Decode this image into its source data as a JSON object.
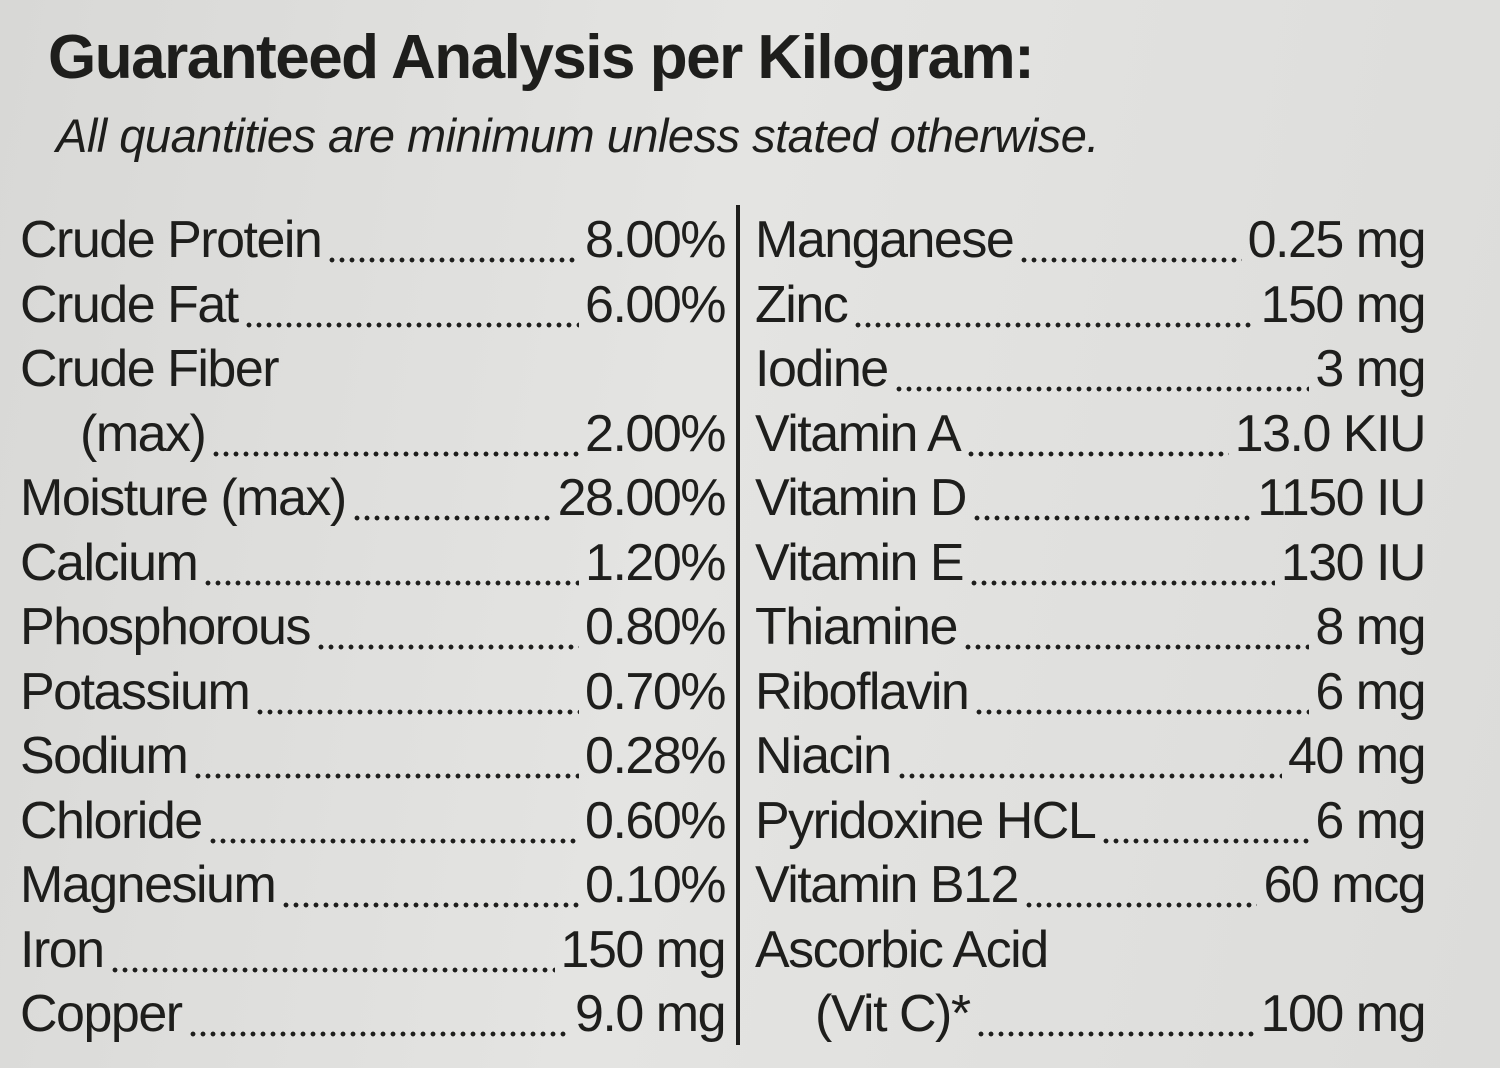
{
  "header": {
    "title": "Guaranteed Analysis per Kilogram:",
    "subtitle": "All quantities are minimum unless stated otherwise."
  },
  "left": [
    {
      "name": "Crude Protein",
      "value": "8.00%"
    },
    {
      "name": "Crude Fat",
      "value": "6.00%"
    },
    {
      "name": "Crude Fiber",
      "sub": "(max)",
      "value": "2.00%"
    },
    {
      "name": "Moisture (max)",
      "value": "28.00%"
    },
    {
      "name": "Calcium",
      "value": "1.20%"
    },
    {
      "name": "Phosphorous",
      "value": "0.80%"
    },
    {
      "name": "Potassium",
      "value": "0.70%"
    },
    {
      "name": "Sodium",
      "value": "0.28%"
    },
    {
      "name": "Chloride",
      "value": "0.60%"
    },
    {
      "name": "Magnesium",
      "value": "0.10%"
    },
    {
      "name": "Iron",
      "value": "150 mg"
    },
    {
      "name": "Copper",
      "value": "9.0 mg"
    }
  ],
  "right": [
    {
      "name": "Manganese",
      "value": "0.25 mg"
    },
    {
      "name": "Zinc",
      "value": "150 mg"
    },
    {
      "name": "Iodine",
      "value": "3 mg"
    },
    {
      "name": "Vitamin A",
      "value": "13.0 KIU"
    },
    {
      "name": "Vitamin D",
      "value": "1150 IU"
    },
    {
      "name": "Vitamin E",
      "value": "130 IU"
    },
    {
      "name": "Thiamine",
      "value": "8 mg"
    },
    {
      "name": "Riboflavin",
      "value": "6 mg"
    },
    {
      "name": "Niacin",
      "value": "40 mg"
    },
    {
      "name": "Pyridoxine HCL",
      "value": "6 mg"
    },
    {
      "name": "Vitamin B12",
      "value": "60 mcg"
    },
    {
      "name": "Ascorbic Acid",
      "sub": "(Vit C)*",
      "value": "100 mg"
    }
  ]
}
